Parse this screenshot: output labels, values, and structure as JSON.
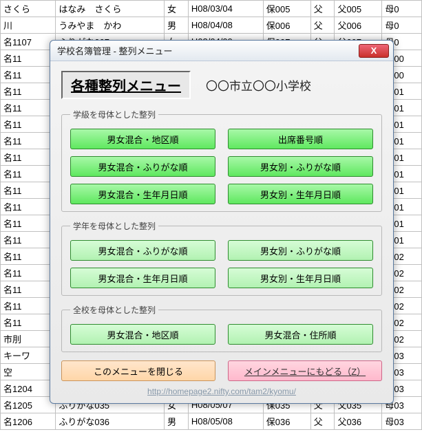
{
  "bg_rows": [
    [
      "さくら",
      "はなみ　さくら",
      "女",
      "H08/03/04",
      "保005",
      "父",
      "父005",
      "母0"
    ],
    [
      "川",
      "うみやま　かわ",
      "男",
      "H08/04/08",
      "保006",
      "父",
      "父006",
      "母0"
    ],
    [
      "名1107",
      "ふりがな007",
      "女",
      "H08/04/09",
      "保007",
      "父",
      "父007",
      "母0"
    ],
    [
      "名11",
      "",
      "",
      "",
      "",
      "",
      "",
      "母00"
    ],
    [
      "名11",
      "",
      "",
      "",
      "",
      "",
      "",
      "母00"
    ],
    [
      "名11",
      "",
      "",
      "",
      "",
      "",
      "",
      "母01"
    ],
    [
      "名11",
      "",
      "",
      "",
      "",
      "",
      "",
      "母01"
    ],
    [
      "名11",
      "",
      "",
      "",
      "",
      "",
      "",
      "母01"
    ],
    [
      "名11",
      "",
      "",
      "",
      "",
      "",
      "",
      "母01"
    ],
    [
      "名11",
      "",
      "",
      "",
      "",
      "",
      "",
      "母01"
    ],
    [
      "名11",
      "",
      "",
      "",
      "",
      "",
      "",
      "母01"
    ],
    [
      "名11",
      "",
      "",
      "",
      "",
      "",
      "",
      "母01"
    ],
    [
      "名11",
      "",
      "",
      "",
      "",
      "",
      "",
      "母01"
    ],
    [
      "名11",
      "",
      "",
      "",
      "",
      "",
      "",
      "母01"
    ],
    [
      "名11",
      "",
      "",
      "",
      "",
      "",
      "",
      "母01"
    ],
    [
      "名11",
      "",
      "",
      "",
      "",
      "",
      "",
      "母02"
    ],
    [
      "名11",
      "",
      "",
      "",
      "",
      "",
      "",
      "母02"
    ],
    [
      "名11",
      "",
      "",
      "",
      "",
      "",
      "",
      "母02"
    ],
    [
      "名11",
      "",
      "",
      "",
      "",
      "",
      "",
      "母02"
    ],
    [
      "名11",
      "",
      "",
      "",
      "",
      "",
      "",
      "母02"
    ],
    [
      "市刖",
      "",
      "",
      "",
      "",
      "",
      "",
      "母02"
    ],
    [
      "キーワ",
      "",
      "",
      "",
      "",
      "",
      "",
      "母03"
    ],
    [
      "空",
      "",
      "",
      "",
      "",
      "",
      "",
      "母03"
    ],
    [
      "名1204",
      "ふりがな034",
      "男",
      "H08/05/06",
      "保034",
      "父",
      "父034",
      "母03"
    ],
    [
      "名1205",
      "ふりがな035",
      "女",
      "H08/05/07",
      "保035",
      "父",
      "父035",
      "母03"
    ],
    [
      "名1206",
      "ふりがな036",
      "男",
      "H08/05/08",
      "保036",
      "父",
      "父036",
      "母03"
    ]
  ],
  "dialog": {
    "title": "学校名簿管理 - 整列メニュー",
    "close": "X",
    "menu_title": "各種整列メニュー",
    "school": "〇〇市立〇〇小学校",
    "group1": {
      "legend": "学級を母体とした整列",
      "buttons": [
        "男女混合・地区順",
        "出席番号順",
        "男女混合・ふりがな順",
        "男女別・ふりがな順",
        "男女混合・生年月日順",
        "男女別・生年月日順"
      ]
    },
    "group2": {
      "legend": "学年を母体とした整列",
      "buttons": [
        "男女混合・ふりがな順",
        "男女別・ふりがな順",
        "男女混合・生年月日順",
        "男女別・生年月日順"
      ]
    },
    "group3": {
      "legend": "全校を母体とした整列",
      "buttons": [
        "男女混合・地区順",
        "男女混合・住所順"
      ]
    },
    "close_menu": "このメニューを閉じる",
    "main_menu": "メインメニューにもどる（Z）",
    "footer": "http://homepage2.nifty.com/tam2/kyomu/"
  }
}
